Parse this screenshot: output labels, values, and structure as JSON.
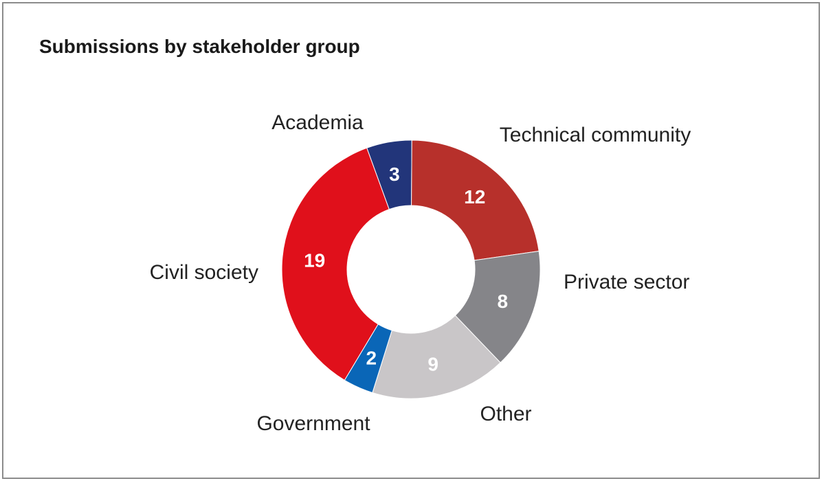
{
  "chart_data": {
    "type": "pie",
    "variant": "donut",
    "title": "Submissions by stakeholder group",
    "categories": [
      "Academia",
      "Technical community",
      "Private sector",
      "Other",
      "Government",
      "Civil society"
    ],
    "values": [
      3,
      12,
      8,
      9,
      2,
      19
    ],
    "value_labels": [
      "3",
      "12",
      "8",
      "9",
      "2",
      "19"
    ],
    "colors": [
      "#22357a",
      "#b7302b",
      "#858589",
      "#c9c6c8",
      "#0a66b7",
      "#e0101b"
    ],
    "legend": "none",
    "labels_position": "outside"
  }
}
